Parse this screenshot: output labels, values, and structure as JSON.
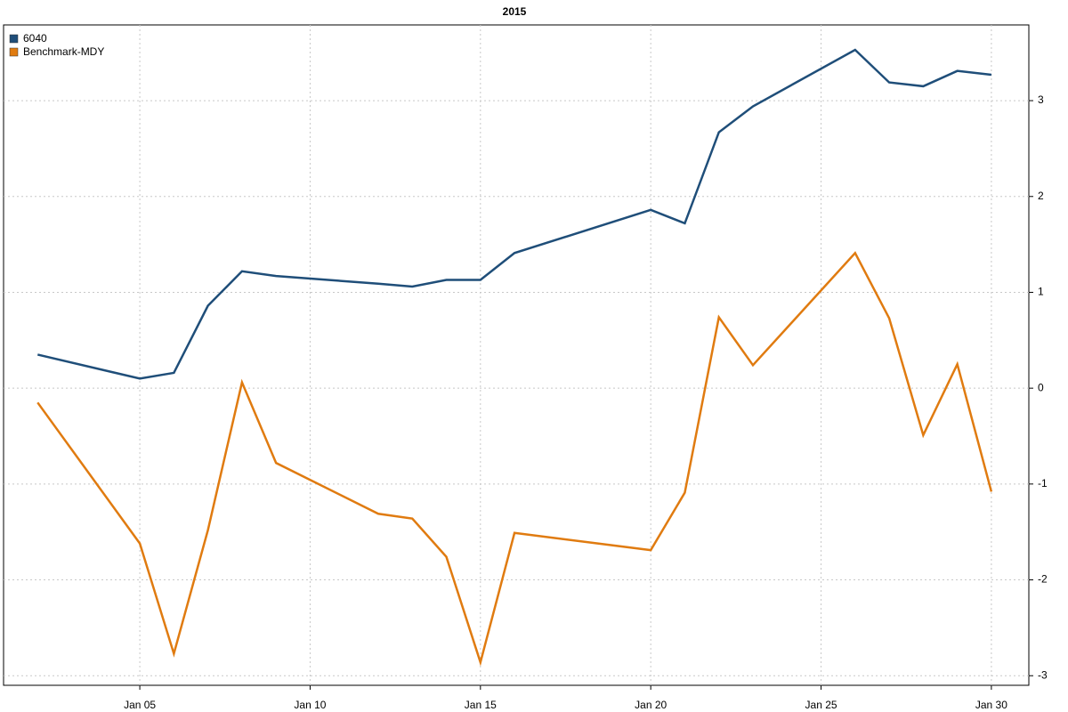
{
  "chart_data": {
    "type": "line",
    "title": "2015",
    "x": [
      2,
      5,
      6,
      7,
      8,
      9,
      12,
      13,
      14,
      15,
      16,
      20,
      21,
      22,
      23,
      26,
      27,
      28,
      29,
      30
    ],
    "series": [
      {
        "name": "6040",
        "color": "#1f4e79",
        "values": [
          0.35,
          0.1,
          0.16,
          0.86,
          1.22,
          1.17,
          1.09,
          1.06,
          1.13,
          1.13,
          1.41,
          1.86,
          1.72,
          2.67,
          2.94,
          3.53,
          3.19,
          3.15,
          3.31,
          3.27
        ]
      },
      {
        "name": "Benchmark-MDY",
        "color": "#e07b10",
        "values": [
          -0.15,
          -1.62,
          -2.77,
          -1.48,
          0.06,
          -0.78,
          -1.31,
          -1.36,
          -1.76,
          -2.86,
          -1.51,
          -1.69,
          -1.09,
          0.74,
          0.24,
          1.41,
          0.73,
          -0.49,
          0.25,
          -1.08
        ]
      }
    ],
    "xlim": [
      1,
      31.1
    ],
    "xticks": [
      {
        "value": 5,
        "label": "Jan 05"
      },
      {
        "value": 10,
        "label": "Jan 10"
      },
      {
        "value": 15,
        "label": "Jan 15"
      },
      {
        "value": 20,
        "label": "Jan 20"
      },
      {
        "value": 25,
        "label": "Jan 25"
      },
      {
        "value": 30,
        "label": "Jan 30"
      }
    ],
    "ylim": [
      -3.1,
      3.79
    ],
    "yticks": [
      -3,
      -2,
      -1,
      0,
      1,
      2,
      3
    ],
    "grid": true,
    "legend": "top-left"
  }
}
